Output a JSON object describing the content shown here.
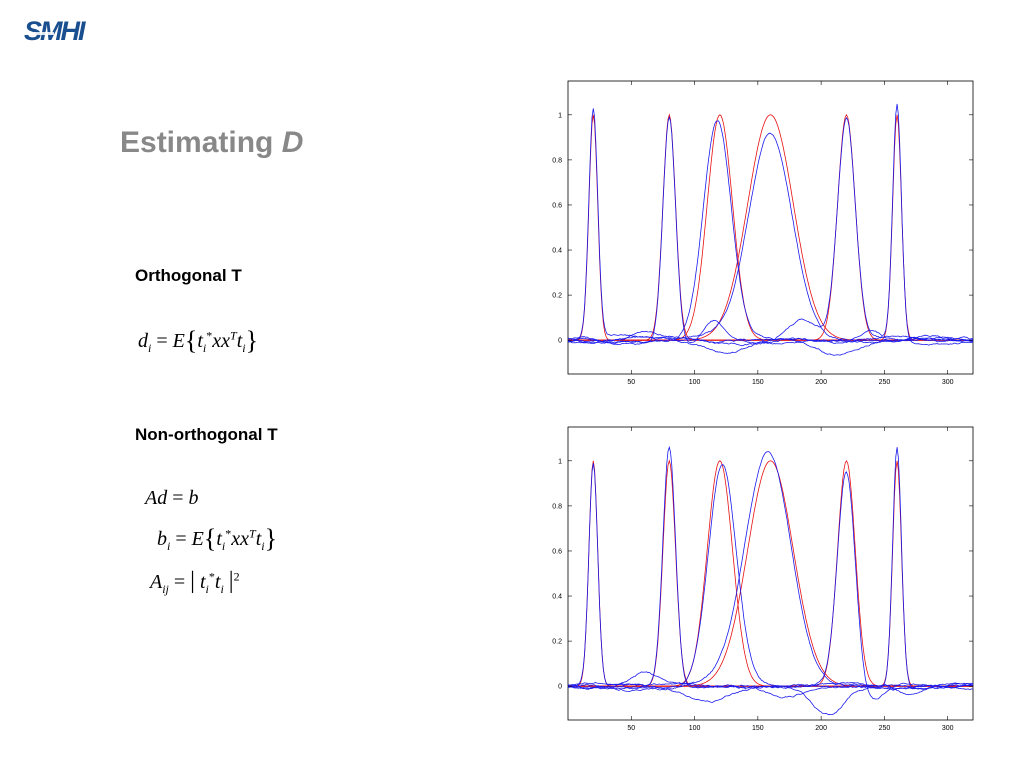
{
  "logo": {
    "text": "SMHI"
  },
  "title": {
    "text": "Estimating",
    "variable": "D"
  },
  "sections": {
    "orthogonal": "Orthogonal T",
    "non_orthogonal": "Non-orthogonal T"
  },
  "equations": {
    "d_i": "d_i = E{ t_i^* x x^T t_i }",
    "Ad": "Ad = b",
    "b_i": "b_i = E{ t_i^* x x^T t_i }",
    "A_ij": "A_ij = | t_i^* t_i |^2"
  },
  "colors": {
    "red_curves": "#e81010",
    "blue_curves": "#1a1aee",
    "title": "#888888",
    "logo": "#1a4f8f"
  },
  "chart_data": [
    {
      "type": "line",
      "title": "",
      "xlabel": "",
      "ylabel": "",
      "xlim": [
        0,
        320
      ],
      "ylim": [
        -0.15,
        1.15
      ],
      "xticks": [
        50,
        100,
        150,
        200,
        250,
        300
      ],
      "yticks": [
        0,
        0.2,
        0.4,
        0.6,
        0.8,
        1
      ],
      "grid": false,
      "series": [
        {
          "color": "red",
          "peaks": [
            {
              "c": 20,
              "h": 1.0,
              "w": 3.5
            }
          ]
        },
        {
          "color": "red",
          "peaks": [
            {
              "c": 80,
              "h": 1.0,
              "w": 5
            }
          ]
        },
        {
          "color": "red",
          "peaks": [
            {
              "c": 120,
              "h": 1.0,
              "w": 10
            }
          ]
        },
        {
          "color": "red",
          "peaks": [
            {
              "c": 160,
              "h": 1.0,
              "w": 18
            }
          ]
        },
        {
          "color": "red",
          "peaks": [
            {
              "c": 220,
              "h": 1.0,
              "w": 7
            }
          ]
        },
        {
          "color": "red",
          "peaks": [
            {
              "c": 260,
              "h": 1.0,
              "w": 3.5
            }
          ]
        },
        {
          "color": "blue",
          "peaks": [
            {
              "c": 20,
              "h": 1.02,
              "w": 3.5
            },
            {
              "c": 125,
              "h": -0.05,
              "w": 15
            }
          ]
        },
        {
          "color": "blue",
          "peaks": [
            {
              "c": 80,
              "h": 1.01,
              "w": 5
            },
            {
              "c": 115,
              "h": 0.1,
              "w": 8
            }
          ]
        },
        {
          "color": "blue",
          "peaks": [
            {
              "c": 118,
              "h": 0.98,
              "w": 11
            },
            {
              "c": 210,
              "h": -0.06,
              "w": 15
            }
          ]
        },
        {
          "color": "blue",
          "peaks": [
            {
              "c": 160,
              "h": 0.91,
              "w": 17
            },
            {
              "c": 60,
              "h": 0.04,
              "w": 10
            }
          ]
        },
        {
          "color": "blue",
          "peaks": [
            {
              "c": 220,
              "h": 0.97,
              "w": 7
            },
            {
              "c": 185,
              "h": 0.1,
              "w": 12
            }
          ]
        },
        {
          "color": "blue",
          "peaks": [
            {
              "c": 260,
              "h": 1.06,
              "w": 3.5
            },
            {
              "c": 240,
              "h": 0.05,
              "w": 8
            }
          ]
        }
      ]
    },
    {
      "type": "line",
      "title": "",
      "xlabel": "",
      "ylabel": "",
      "xlim": [
        0,
        320
      ],
      "ylim": [
        -0.15,
        1.15
      ],
      "xticks": [
        50,
        100,
        150,
        200,
        250,
        300
      ],
      "yticks": [
        0,
        0.2,
        0.4,
        0.6,
        0.8,
        1
      ],
      "grid": false,
      "series": [
        {
          "color": "red",
          "peaks": [
            {
              "c": 20,
              "h": 1.0,
              "w": 3.5
            }
          ]
        },
        {
          "color": "red",
          "peaks": [
            {
              "c": 80,
              "h": 1.0,
              "w": 5
            }
          ]
        },
        {
          "color": "red",
          "peaks": [
            {
              "c": 120,
              "h": 1.0,
              "w": 10
            }
          ]
        },
        {
          "color": "red",
          "peaks": [
            {
              "c": 160,
              "h": 1.0,
              "w": 18
            }
          ]
        },
        {
          "color": "red",
          "peaks": [
            {
              "c": 220,
              "h": 1.0,
              "w": 7
            }
          ]
        },
        {
          "color": "red",
          "peaks": [
            {
              "c": 260,
              "h": 1.0,
              "w": 3.5
            }
          ]
        },
        {
          "color": "blue",
          "peaks": [
            {
              "c": 20,
              "h": 0.98,
              "w": 3.5
            },
            {
              "c": 110,
              "h": -0.06,
              "w": 15
            }
          ]
        },
        {
          "color": "blue",
          "peaks": [
            {
              "c": 80,
              "h": 1.07,
              "w": 5
            },
            {
              "c": 170,
              "h": -0.05,
              "w": 15
            }
          ]
        },
        {
          "color": "blue",
          "peaks": [
            {
              "c": 122,
              "h": 0.98,
              "w": 11
            },
            {
              "c": 205,
              "h": -0.12,
              "w": 12
            }
          ]
        },
        {
          "color": "blue",
          "peaks": [
            {
              "c": 158,
              "h": 1.04,
              "w": 18
            },
            {
              "c": 270,
              "h": -0.04,
              "w": 10
            }
          ]
        },
        {
          "color": "blue",
          "peaks": [
            {
              "c": 220,
              "h": 0.95,
              "w": 7
            },
            {
              "c": 240,
              "h": -0.08,
              "w": 10
            }
          ]
        },
        {
          "color": "blue",
          "peaks": [
            {
              "c": 260,
              "h": 1.07,
              "w": 3.5
            },
            {
              "c": 60,
              "h": 0.05,
              "w": 10
            }
          ]
        }
      ]
    }
  ]
}
